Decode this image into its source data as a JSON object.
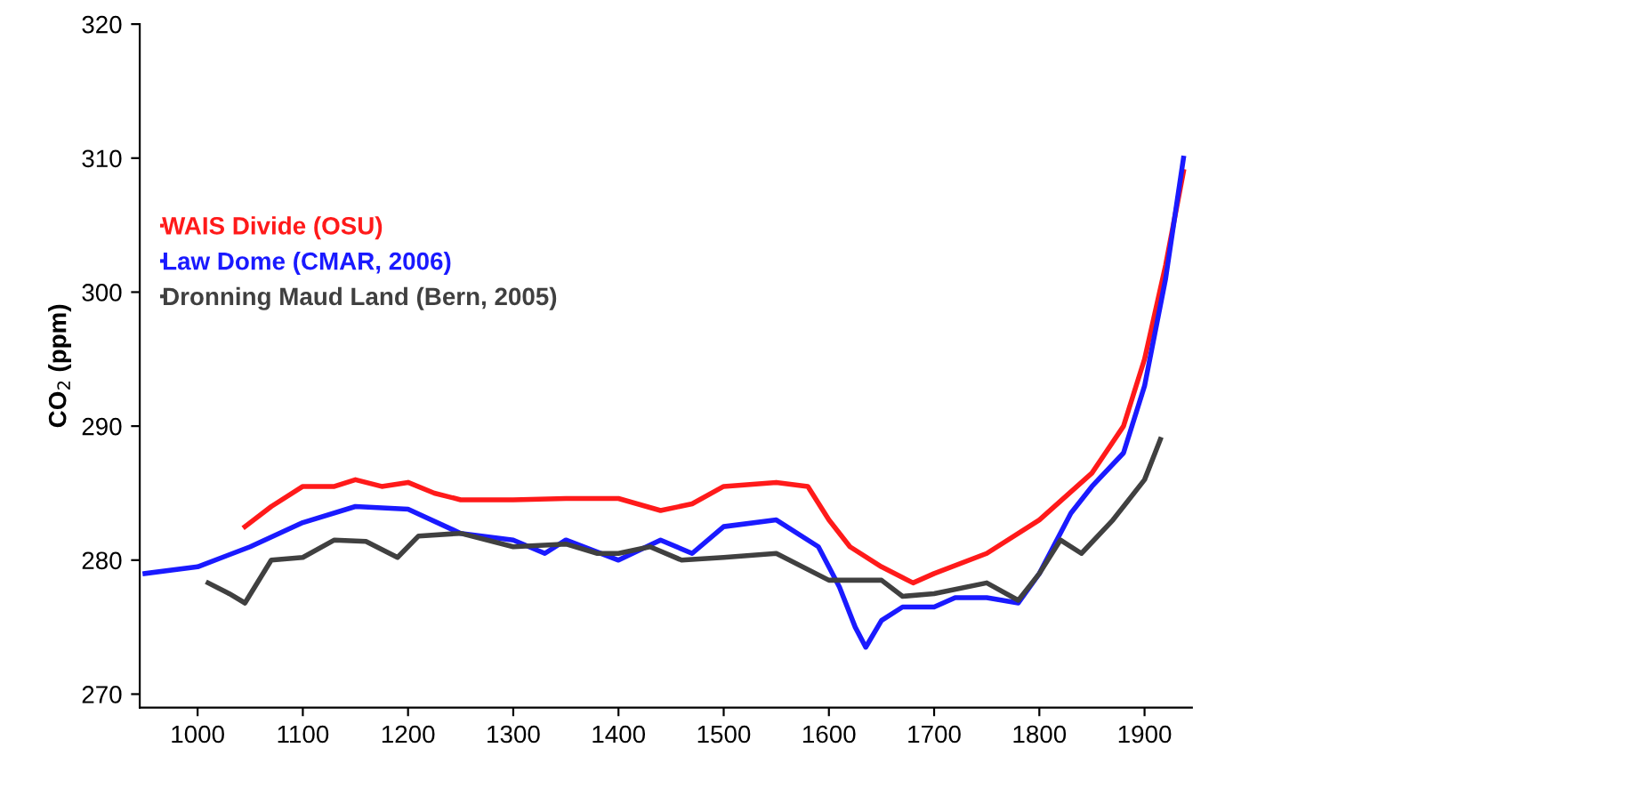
{
  "chart_data": {
    "type": "line",
    "ylabel": "CO$_{2}$ (ppm)",
    "xlim": [
      945,
      1945
    ],
    "xticks": [
      1000,
      1100,
      1200,
      1300,
      1400,
      1500,
      1600,
      1700,
      1800,
      1900
    ],
    "ylim": [
      269,
      320
    ],
    "yticks": [
      270,
      280,
      290,
      300,
      310,
      320
    ],
    "grid": false,
    "legend": "center left",
    "marker": "none",
    "line_style": "solid",
    "series": [
      {
        "name": "WAIS Divide (OSU)",
        "color": "#ff1a1a",
        "x": [
          1045,
          1070,
          1100,
          1130,
          1150,
          1175,
          1200,
          1225,
          1250,
          1300,
          1350,
          1400,
          1440,
          1470,
          1500,
          1550,
          1580,
          1600,
          1620,
          1650,
          1680,
          1700,
          1750,
          1800,
          1850,
          1880,
          1900,
          1920,
          1937
        ],
        "values": [
          282.5,
          284,
          285.5,
          285.5,
          286,
          285.5,
          285.8,
          285,
          284.5,
          284.5,
          284.6,
          284.6,
          283.7,
          284.2,
          285.5,
          285.8,
          285.5,
          283,
          281,
          279.5,
          278.3,
          279,
          280.5,
          283,
          286.5,
          290,
          295,
          302,
          309
        ]
      },
      {
        "name": "Law Dome (CMAR, 2006)",
        "color": "#1a1aff",
        "x": [
          950,
          1000,
          1050,
          1100,
          1150,
          1200,
          1250,
          1300,
          1330,
          1350,
          1400,
          1440,
          1470,
          1500,
          1550,
          1590,
          1610,
          1625,
          1635,
          1650,
          1670,
          1700,
          1720,
          1750,
          1780,
          1800,
          1830,
          1850,
          1880,
          1900,
          1920,
          1937
        ],
        "values": [
          279,
          279.5,
          281,
          282.8,
          284,
          283.8,
          282,
          281.5,
          280.5,
          281.5,
          280,
          281.5,
          280.5,
          282.5,
          283,
          281,
          278,
          275,
          273.5,
          275.5,
          276.5,
          276.5,
          277.2,
          277.2,
          276.8,
          279,
          283.5,
          285.5,
          288,
          293,
          301,
          310
        ]
      },
      {
        "name": "Dronning Maud Land (Bern, 2005)",
        "color": "#404040",
        "x": [
          1010,
          1030,
          1045,
          1070,
          1100,
          1130,
          1160,
          1190,
          1210,
          1250,
          1300,
          1350,
          1380,
          1400,
          1430,
          1460,
          1500,
          1550,
          1600,
          1650,
          1670,
          1700,
          1750,
          1780,
          1800,
          1820,
          1840,
          1870,
          1900,
          1915
        ],
        "values": [
          278.3,
          277.5,
          276.8,
          280,
          280.2,
          281.5,
          281.4,
          280.2,
          281.8,
          282,
          281,
          281.2,
          280.5,
          280.5,
          281,
          280,
          280.2,
          280.5,
          278.5,
          278.5,
          277.3,
          277.5,
          278.3,
          277,
          279,
          281.5,
          280.5,
          283,
          286,
          289
        ]
      }
    ]
  }
}
